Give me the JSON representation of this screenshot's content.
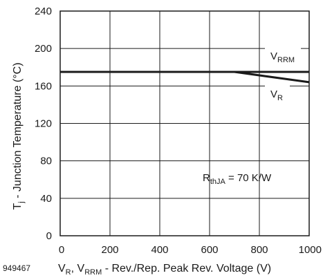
{
  "figure_id": "949467",
  "chart_data": {
    "type": "line",
    "xlim": [
      0,
      1000
    ],
    "ylim": [
      0,
      240
    ],
    "xticks": [
      0,
      200,
      400,
      600,
      800,
      1000
    ],
    "yticks": [
      0,
      40,
      80,
      120,
      160,
      200,
      240
    ],
    "grid": true,
    "xlabel": {
      "main": "V",
      "sub1": "R",
      "sep": ", V",
      "sub2": "RRM",
      "rest": " - Rev./Rep. Peak Rev. Voltage (V)"
    },
    "ylabel": {
      "main": "T",
      "sub": "j",
      "rest": " - Junction Temperature (°C)"
    },
    "series": [
      {
        "name": "V_RRM",
        "label_main": "V",
        "label_sub": "RRM",
        "x": [
          0,
          1000
        ],
        "y": [
          175,
          175
        ]
      },
      {
        "name": "V_R",
        "label_main": "V",
        "label_sub": "R",
        "x": [
          0,
          700,
          1000
        ],
        "y": [
          175,
          175,
          164
        ]
      }
    ],
    "annotation": {
      "main": "R",
      "sub": "thJA",
      "rest": " = 70 K/W"
    },
    "line_color": "#1a1a1a"
  }
}
